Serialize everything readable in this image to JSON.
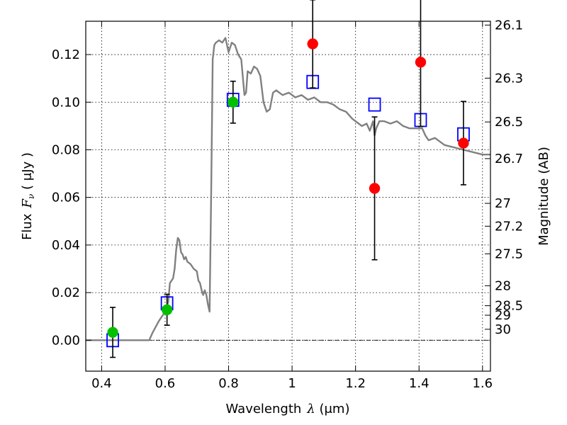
{
  "chart_data": {
    "type": "scatter",
    "title": "",
    "xlabel": {
      "prefix": "Wavelength",
      "symbol": "λ",
      "unit": " (μm)"
    },
    "ylabel": {
      "prefix": "Flux",
      "symbol": "F",
      "subscript": "ν",
      "unit": " ( μJy )"
    },
    "y2label": "Magnitude (AB)",
    "xlim": [
      0.35,
      1.625
    ],
    "ylim": [
      -0.013,
      0.134
    ],
    "grid": true,
    "x_ticks": [
      0.4,
      0.6,
      0.8,
      1.0,
      1.2,
      1.4,
      1.6
    ],
    "x_tick_labels": [
      "0.4",
      "0.6",
      "0.8",
      "1",
      "1.2",
      "1.4",
      "1.6"
    ],
    "y_ticks": [
      0.0,
      0.02,
      0.04,
      0.06,
      0.08,
      0.1,
      0.12
    ],
    "y_tick_labels": [
      "0.00",
      "0.02",
      "0.04",
      "0.06",
      "0.08",
      "0.10",
      "0.12"
    ],
    "mag_ticks": [
      {
        "label": "26.1",
        "flux": 0.1324
      },
      {
        "label": "26.3",
        "flux": 0.1101
      },
      {
        "label": "26.5",
        "flux": 0.0917
      },
      {
        "label": "26.7",
        "flux": 0.0763
      },
      {
        "label": "27",
        "flux": 0.0575
      },
      {
        "label": "27.2",
        "flux": 0.0479
      },
      {
        "label": "27.5",
        "flux": 0.0363
      },
      {
        "label": "28",
        "flux": 0.0229
      },
      {
        "label": "28.5",
        "flux": 0.0145
      },
      {
        "label": "29",
        "flux": 0.0105
      },
      {
        "label": "30",
        "flux": 0.0046
      }
    ],
    "series": [
      {
        "kind": "model_sed",
        "color": "#808080",
        "x": [
          0.35,
          0.55,
          0.56,
          0.58,
          0.6,
          0.61,
          0.615,
          0.625,
          0.63,
          0.635,
          0.64,
          0.645,
          0.65,
          0.655,
          0.66,
          0.665,
          0.67,
          0.68,
          0.69,
          0.7,
          0.705,
          0.71,
          0.715,
          0.72,
          0.725,
          0.73,
          0.735,
          0.74,
          0.745,
          0.75,
          0.755,
          0.76,
          0.77,
          0.78,
          0.79,
          0.8,
          0.81,
          0.82,
          0.83,
          0.84,
          0.85,
          0.855,
          0.86,
          0.87,
          0.88,
          0.89,
          0.9,
          0.91,
          0.915,
          0.92,
          0.93,
          0.94,
          0.95,
          0.97,
          0.99,
          1.01,
          1.03,
          1.05,
          1.07,
          1.09,
          1.11,
          1.13,
          1.15,
          1.17,
          1.19,
          1.21,
          1.22,
          1.235,
          1.245,
          1.255,
          1.26,
          1.265,
          1.275,
          1.29,
          1.31,
          1.33,
          1.35,
          1.37,
          1.39,
          1.41,
          1.42,
          1.43,
          1.45,
          1.48,
          1.51,
          1.54,
          1.57,
          1.6,
          1.625
        ],
        "y": [
          0.0,
          0.0,
          0.003,
          0.008,
          0.012,
          0.016,
          0.024,
          0.026,
          0.03,
          0.038,
          0.043,
          0.042,
          0.037,
          0.036,
          0.034,
          0.035,
          0.033,
          0.032,
          0.03,
          0.029,
          0.025,
          0.024,
          0.021,
          0.019,
          0.021,
          0.019,
          0.015,
          0.012,
          0.06,
          0.118,
          0.124,
          0.125,
          0.126,
          0.125,
          0.127,
          0.121,
          0.125,
          0.124,
          0.12,
          0.118,
          0.103,
          0.104,
          0.113,
          0.112,
          0.115,
          0.114,
          0.111,
          0.1,
          0.098,
          0.096,
          0.097,
          0.104,
          0.105,
          0.103,
          0.104,
          0.102,
          0.103,
          0.101,
          0.102,
          0.1,
          0.1,
          0.099,
          0.097,
          0.096,
          0.093,
          0.091,
          0.09,
          0.091,
          0.088,
          0.092,
          0.086,
          0.089,
          0.092,
          0.092,
          0.091,
          0.092,
          0.09,
          0.089,
          0.089,
          0.089,
          0.086,
          0.084,
          0.085,
          0.082,
          0.081,
          0.08,
          0.079,
          0.078,
          0.078
        ]
      },
      {
        "kind": "model_photometry",
        "color": "#0000ff",
        "marker": "open-square",
        "points": [
          {
            "x": 0.435,
            "y": 0.0
          },
          {
            "x": 0.606,
            "y": 0.0155
          },
          {
            "x": 0.814,
            "y": 0.101
          },
          {
            "x": 1.065,
            "y": 0.1085
          },
          {
            "x": 1.26,
            "y": 0.099
          },
          {
            "x": 1.405,
            "y": 0.0925
          },
          {
            "x": 1.54,
            "y": 0.0865
          }
        ]
      },
      {
        "kind": "observed_detection",
        "color": "#00c000",
        "marker": "filled-circle",
        "points": [
          {
            "x": 0.435,
            "y": 0.0033,
            "err": 0.0105
          },
          {
            "x": 0.606,
            "y": 0.0128,
            "err": 0.0065
          },
          {
            "x": 0.814,
            "y": 0.1,
            "err": 0.0088
          }
        ]
      },
      {
        "kind": "observed_nondetection",
        "color": "#ff0000",
        "marker": "filled-circle",
        "points": [
          {
            "x": 1.065,
            "y": 0.1245,
            "err": 0.0185
          },
          {
            "x": 1.26,
            "y": 0.0638,
            "err": 0.03
          },
          {
            "x": 1.405,
            "y": 0.1168,
            "err": 0.027
          },
          {
            "x": 1.54,
            "y": 0.0828,
            "err": 0.0175
          }
        ]
      }
    ]
  }
}
